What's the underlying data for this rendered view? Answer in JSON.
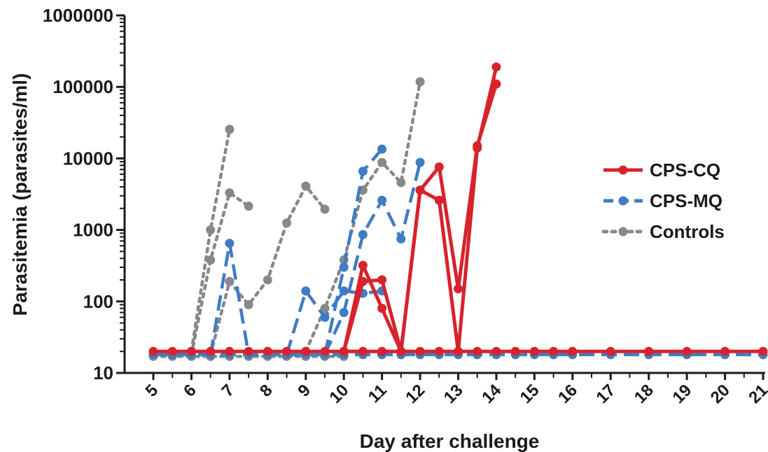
{
  "chart_data": {
    "type": "line",
    "title": "",
    "xlabel": "Day after challenge",
    "ylabel": "Parasitemia (parasites/ml)",
    "yscale": "log",
    "ylim": [
      10,
      1000000
    ],
    "xlim": [
      5,
      21
    ],
    "y_ticks": [
      10,
      100,
      1000,
      10000,
      100000,
      1000000
    ],
    "y_tick_labels": [
      "10",
      "100",
      "1000",
      "10000",
      "100000",
      "1000000"
    ],
    "x_ticks": [
      5,
      6,
      7,
      8,
      9,
      10,
      11,
      12,
      13,
      14,
      15,
      16,
      17,
      18,
      19,
      20,
      21
    ],
    "x_tick_labels": [
      "5",
      "6",
      "7",
      "8",
      "9",
      "10",
      "11",
      "12",
      "13",
      "14",
      "15",
      "16",
      "17",
      "18",
      "19",
      "20",
      "21"
    ],
    "grid": false,
    "legend_position": "right",
    "groups": [
      {
        "name": "CPS-CQ",
        "color": "#d7232b",
        "dash": "solid",
        "lines": [
          [
            [
              5,
              20
            ],
            [
              5.5,
              20
            ],
            [
              6,
              20
            ],
            [
              6.5,
              20
            ],
            [
              7,
              20
            ],
            [
              7.5,
              20
            ],
            [
              8,
              20
            ],
            [
              8.5,
              20
            ],
            [
              9,
              20
            ],
            [
              9.5,
              20
            ],
            [
              10,
              20
            ],
            [
              10.5,
              20
            ],
            [
              11,
              20
            ],
            [
              11.5,
              20
            ],
            [
              12,
              20
            ],
            [
              12.5,
              20
            ],
            [
              13,
              20
            ],
            [
              13.5,
              20
            ],
            [
              14,
              20
            ],
            [
              14.5,
              20
            ],
            [
              15,
              20
            ],
            [
              15.5,
              20
            ],
            [
              16,
              20
            ],
            [
              17,
              20
            ],
            [
              18,
              20
            ],
            [
              19,
              20
            ],
            [
              20,
              20
            ],
            [
              21,
              20
            ]
          ],
          [
            [
              10,
              20
            ],
            [
              10.5,
              320
            ],
            [
              11,
              80
            ],
            [
              11.5,
              20
            ],
            [
              12,
              3600
            ],
            [
              12.5,
              2600
            ],
            [
              13,
              20
            ],
            [
              13.5,
              14000
            ],
            [
              14,
              190000
            ]
          ],
          [
            [
              10,
              20
            ],
            [
              10.5,
              190
            ],
            [
              11,
              200
            ],
            [
              11.5,
              20
            ],
            [
              12,
              3600
            ],
            [
              12.5,
              7600
            ],
            [
              13,
              150
            ],
            [
              13.5,
              15000
            ],
            [
              14,
              110000
            ]
          ]
        ]
      },
      {
        "name": "CPS-MQ",
        "color": "#3f7cc2",
        "dash": "long",
        "lines": [
          [
            [
              5,
              18
            ],
            [
              5.5,
              18
            ],
            [
              6,
              18
            ],
            [
              6.5,
              18
            ],
            [
              7,
              18
            ],
            [
              7.5,
              18
            ],
            [
              8,
              18
            ],
            [
              8.5,
              18
            ],
            [
              9,
              18
            ],
            [
              9.5,
              18
            ],
            [
              10,
              18
            ],
            [
              10.5,
              18
            ],
            [
              11,
              18
            ],
            [
              11.5,
              18
            ],
            [
              12,
              18
            ],
            [
              12.5,
              18
            ],
            [
              13,
              18
            ],
            [
              13.5,
              18
            ],
            [
              14,
              18
            ],
            [
              14.5,
              18
            ],
            [
              15,
              18
            ],
            [
              15.5,
              18
            ],
            [
              16,
              18
            ],
            [
              17,
              18
            ],
            [
              18,
              18
            ],
            [
              19,
              18
            ],
            [
              20,
              18
            ],
            [
              21,
              18
            ]
          ],
          [
            [
              6.5,
              18
            ],
            [
              7,
              650
            ],
            [
              7.5,
              18
            ]
          ],
          [
            [
              8.5,
              18
            ],
            [
              9,
              140
            ],
            [
              9.5,
              60
            ],
            [
              10,
              140
            ],
            [
              10.5,
              130
            ],
            [
              11,
              140
            ]
          ],
          [
            [
              9.5,
              18
            ],
            [
              10,
              300
            ],
            [
              10.5,
              6600
            ],
            [
              11,
              13500
            ]
          ],
          [
            [
              9.5,
              18
            ],
            [
              10,
              70
            ],
            [
              10.5,
              860
            ],
            [
              11,
              2600
            ],
            [
              11.5,
              750
            ],
            [
              12,
              8800
            ]
          ]
        ]
      },
      {
        "name": "Controls",
        "color": "#888888",
        "dash": "dot",
        "lines": [
          [
            [
              5,
              17
            ],
            [
              5.5,
              17
            ],
            [
              6,
              17
            ],
            [
              6.5,
              17
            ],
            [
              7,
              17
            ],
            [
              7.5,
              17
            ],
            [
              8,
              17
            ],
            [
              8.5,
              17
            ],
            [
              9,
              17
            ],
            [
              9.5,
              17
            ],
            [
              10,
              17
            ]
          ],
          [
            [
              6,
              18
            ],
            [
              6.5,
              380
            ],
            [
              7,
              3300
            ],
            [
              7.5,
              2150
            ]
          ],
          [
            [
              6,
              20
            ],
            [
              6.5,
              1000
            ],
            [
              7,
              25500
            ]
          ],
          [
            [
              6.5,
              18
            ],
            [
              7,
              190
            ],
            [
              7.5,
              90
            ],
            [
              8,
              200
            ],
            [
              8.5,
              1250
            ],
            [
              9,
              4100
            ],
            [
              9.5,
              1950
            ]
          ],
          [
            [
              9,
              20
            ],
            [
              9.5,
              80
            ],
            [
              10,
              380
            ],
            [
              10.5,
              3600
            ],
            [
              11,
              8800
            ],
            [
              11.5,
              4600
            ],
            [
              12,
              118000
            ]
          ]
        ]
      }
    ],
    "legend": [
      {
        "label": "CPS-CQ",
        "color": "#d7232b",
        "dash": "solid"
      },
      {
        "label": "CPS-MQ",
        "color": "#3f7cc2",
        "dash": "long"
      },
      {
        "label": "Controls",
        "color": "#888888",
        "dash": "dot"
      }
    ]
  }
}
